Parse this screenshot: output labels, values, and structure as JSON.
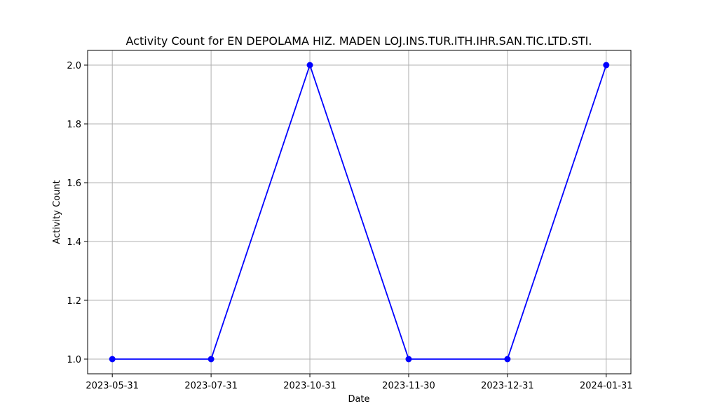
{
  "chart_data": {
    "type": "line",
    "title": "Activity Count for EN DEPOLAMA HIZ. MADEN LOJ.INS.TUR.ITH.IHR.SAN.TIC.LTD.STI.",
    "xlabel": "Date",
    "ylabel": "Activity Count",
    "categories": [
      "2023-05-31",
      "2023-07-31",
      "2023-10-31",
      "2023-11-30",
      "2023-12-31",
      "2024-01-31"
    ],
    "series": [
      {
        "values": [
          1,
          1,
          2,
          1,
          1,
          2
        ]
      }
    ],
    "yticks": [
      "1.0",
      "1.2",
      "1.4",
      "1.6",
      "1.8",
      "2.0"
    ],
    "ylim": [
      0.95,
      2.05
    ],
    "grid": true,
    "line_color": "#0000ff",
    "marker": "circle"
  }
}
